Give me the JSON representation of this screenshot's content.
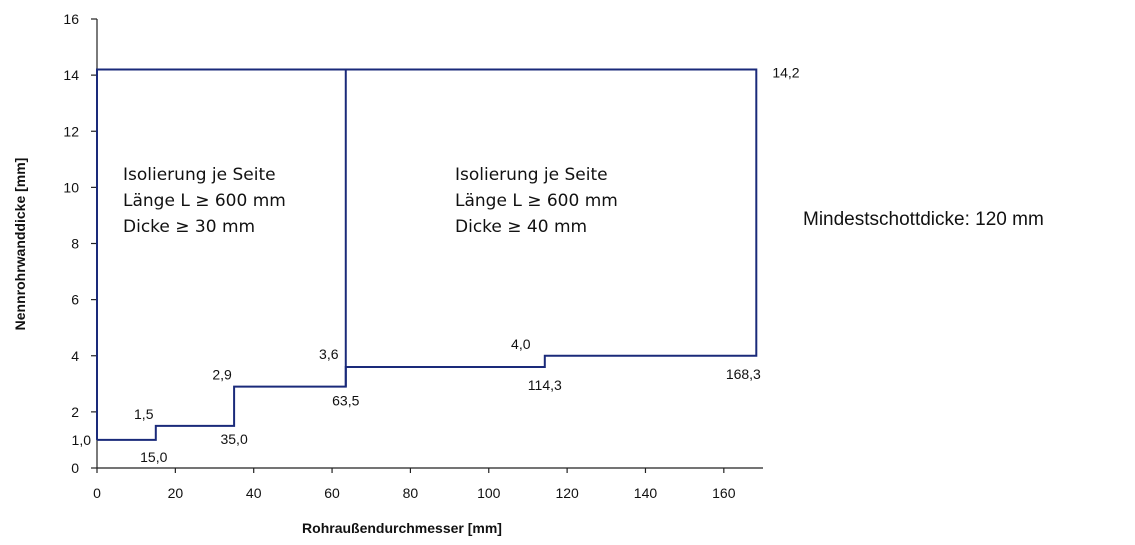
{
  "chart_data": {
    "type": "line",
    "title": "",
    "xlabel": "Rohraußendurchmesser [mm]",
    "ylabel": "Nennrohrwanddicke [mm]",
    "xlim": [
      0,
      170
    ],
    "ylim": [
      0,
      16
    ],
    "x_ticks": [
      0,
      20,
      40,
      60,
      80,
      100,
      120,
      140,
      160
    ],
    "x_tick_labels": [
      "0",
      "20",
      "40",
      "60",
      "80",
      "100",
      "120",
      "140",
      "160"
    ],
    "y_ticks": [
      0,
      2,
      4,
      6,
      8,
      10,
      12,
      14,
      16
    ],
    "y_tick_labels": [
      "0",
      "2",
      "4",
      "6",
      "8",
      "10",
      "12",
      "14",
      "16"
    ],
    "grid": false,
    "line_color": "#1a2a7a",
    "boundary_points": [
      {
        "x": 0,
        "y": 1.0
      },
      {
        "x": 15.0,
        "y": 1.0
      },
      {
        "x": 15.0,
        "y": 1.5
      },
      {
        "x": 35.0,
        "y": 1.5
      },
      {
        "x": 35.0,
        "y": 2.9
      },
      {
        "x": 63.5,
        "y": 2.9
      },
      {
        "x": 63.5,
        "y": 3.6
      },
      {
        "x": 114.3,
        "y": 3.6
      },
      {
        "x": 114.3,
        "y": 4.0
      },
      {
        "x": 168.3,
        "y": 4.0
      },
      {
        "x": 168.3,
        "y": 14.2
      },
      {
        "x": 0,
        "y": 14.2
      },
      {
        "x": 0,
        "y": 1.0
      }
    ],
    "divider_x": 63.5,
    "value_labels": [
      {
        "text": "1,0",
        "x": 0,
        "y": 1.0,
        "kind": "y-value"
      },
      {
        "text": "15,0",
        "x": 15.0,
        "y": 1.0,
        "kind": "x-step"
      },
      {
        "text": "1,5",
        "x": 15.0,
        "y": 1.5,
        "kind": "y-value"
      },
      {
        "text": "35,0",
        "x": 35.0,
        "y": 1.5,
        "kind": "x-step"
      },
      {
        "text": "2,9",
        "x": 35.0,
        "y": 2.9,
        "kind": "y-value"
      },
      {
        "text": "63,5",
        "x": 63.5,
        "y": 2.9,
        "kind": "x-step"
      },
      {
        "text": "3,6",
        "x": 63.5,
        "y": 3.6,
        "kind": "y-value"
      },
      {
        "text": "114,3",
        "x": 114.3,
        "y": 3.6,
        "kind": "x-step"
      },
      {
        "text": "4,0",
        "x": 114.3,
        "y": 4.0,
        "kind": "y-value"
      },
      {
        "text": "168,3",
        "x": 168.3,
        "y": 4.0,
        "kind": "x-step"
      },
      {
        "text": "14,2",
        "x": 168.3,
        "y": 14.2,
        "kind": "y-value"
      }
    ],
    "regions": [
      {
        "lines": [
          "Isolierung je Seite",
          "Länge L ≥ 600 mm",
          "Dicke ≥ 30 mm"
        ]
      },
      {
        "lines": [
          "Isolierung je Seite",
          "Länge L ≥ 600 mm",
          "Dicke ≥ 40 mm"
        ]
      }
    ],
    "side_note": "Mindestschottdicke: 120 mm"
  }
}
